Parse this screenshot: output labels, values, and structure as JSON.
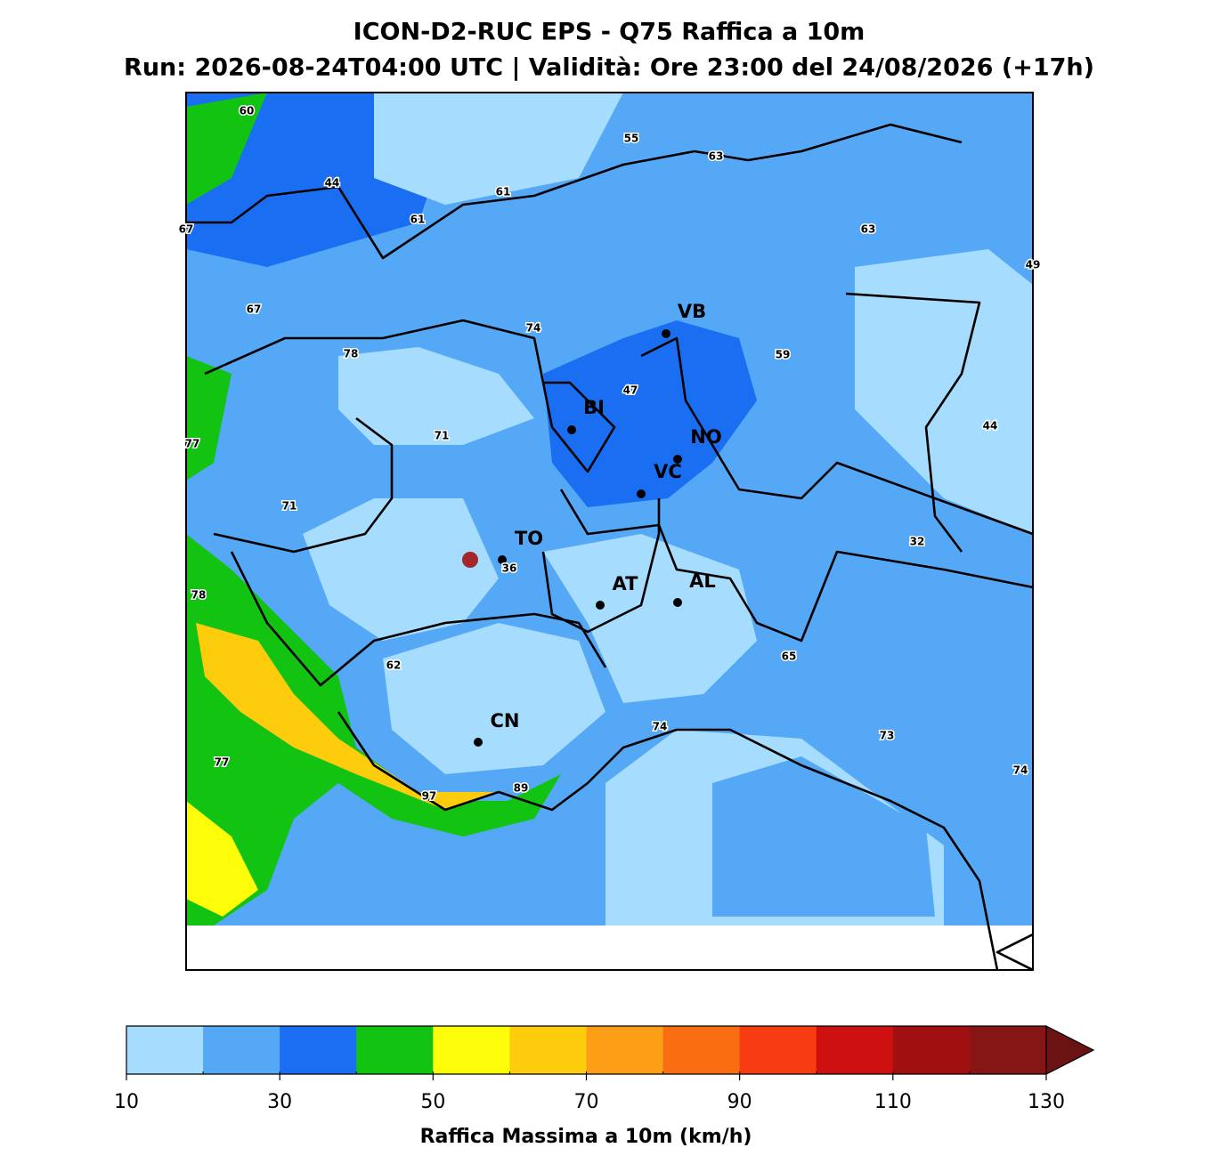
{
  "header": {
    "title": "ICON-D2-RUC EPS - Q75 Raffica a 10m",
    "subtitle": "Run: 2026-08-24T04:00 UTC | Validità: Ore 23:00 del 24/08/2026 (+17h)"
  },
  "map": {
    "cities": [
      "VB",
      "BI",
      "NO",
      "VC",
      "TO",
      "AT",
      "AL",
      "CN"
    ],
    "contour_labels": [
      60,
      55,
      63,
      44,
      61,
      61,
      67,
      63,
      49,
      67,
      74,
      78,
      59,
      47,
      44,
      71,
      77,
      71,
      32,
      36,
      78,
      62,
      65,
      74,
      73,
      77,
      74,
      89,
      97
    ]
  },
  "colorbar": {
    "label": "Raffica Massima a 10m (km/h)",
    "levels": [
      10,
      20,
      30,
      40,
      50,
      60,
      70,
      80,
      90,
      100,
      110,
      120,
      130
    ],
    "colors": [
      "#a6dcfd",
      "#55a8f6",
      "#1a6ef2",
      "#12c312",
      "#fdfd0a",
      "#fdcc0c",
      "#fc9f16",
      "#fa6e12",
      "#f83c12",
      "#ce1010",
      "#a01010",
      "#861515",
      "#6b1313"
    ],
    "ticks": [
      10,
      30,
      50,
      70,
      90,
      110,
      130
    ]
  }
}
